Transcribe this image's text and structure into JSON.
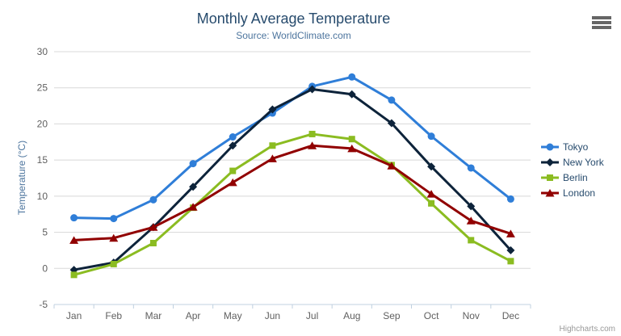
{
  "chart_data": {
    "type": "line",
    "title": "Monthly Average Temperature",
    "subtitle": "Source: WorldClimate.com",
    "categories": [
      "Jan",
      "Feb",
      "Mar",
      "Apr",
      "May",
      "Jun",
      "Jul",
      "Aug",
      "Sep",
      "Oct",
      "Nov",
      "Dec"
    ],
    "ylabel": "Temperature (°C)",
    "ylim": [
      -5,
      30
    ],
    "ytick_step": 5,
    "grid": true,
    "legend_position": "right",
    "axis_colors": {
      "grid": "#d8d8d8",
      "axis_line": "#c0d0e0",
      "tick_label": "#606060"
    },
    "series": [
      {
        "name": "Tokyo",
        "color": "#2f7ed8",
        "marker": "circle",
        "values": [
          7.0,
          6.9,
          9.5,
          14.5,
          18.2,
          21.5,
          25.2,
          26.5,
          23.3,
          18.3,
          13.9,
          9.6
        ]
      },
      {
        "name": "New York",
        "color": "#0d233a",
        "marker": "diamond",
        "values": [
          -0.2,
          0.8,
          5.7,
          11.3,
          17.0,
          22.0,
          24.8,
          24.1,
          20.1,
          14.1,
          8.6,
          2.5
        ]
      },
      {
        "name": "Berlin",
        "color": "#8bbc21",
        "marker": "square",
        "values": [
          -0.9,
          0.6,
          3.5,
          8.4,
          13.5,
          17.0,
          18.6,
          17.9,
          14.3,
          9.0,
          3.9,
          1.0
        ]
      },
      {
        "name": "London",
        "color": "#910000",
        "marker": "triangle",
        "values": [
          3.9,
          4.2,
          5.7,
          8.5,
          11.9,
          15.2,
          17.0,
          16.6,
          14.2,
          10.3,
          6.6,
          4.8
        ]
      }
    ]
  },
  "credits": "Highcharts.com"
}
